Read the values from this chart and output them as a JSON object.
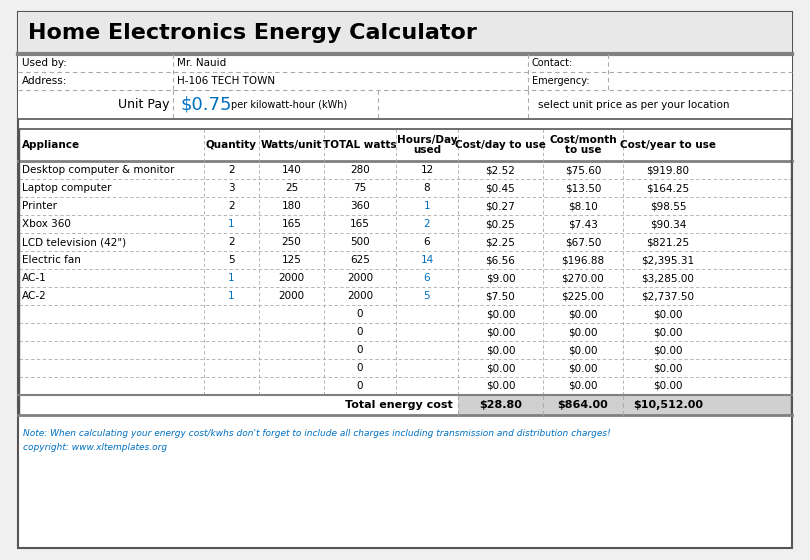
{
  "title": "Home Electronics Energy Calculator",
  "used_by_label": "Used by:",
  "used_by_value": "Mr. Nauid",
  "address_label": "Address:",
  "address_value": "H-106 TECH TOWN",
  "contact_label": "Contact:",
  "emergency_label": "Emergency:",
  "unit_pay_label": "Unit Pay",
  "unit_pay_value": "$0.75",
  "unit_pay_suffix": "per kilowatt-hour (kWh)",
  "unit_pay_note": "select unit price as per your location",
  "col_headers": [
    "Appliance",
    "Quantity",
    "Watts/unit",
    "TOTAL watts",
    "Hours/Day\nused",
    "Cost/day to use",
    "Cost/month\nto use",
    "Cost/year to use"
  ],
  "rows": [
    [
      "Desktop computer & monitor",
      "2",
      "140",
      "280",
      "12",
      "$2.52",
      "$75.60",
      "$919.80"
    ],
    [
      "Laptop computer",
      "3",
      "25",
      "75",
      "8",
      "$0.45",
      "$13.50",
      "$164.25"
    ],
    [
      "Printer",
      "2",
      "180",
      "360",
      "1",
      "$0.27",
      "$8.10",
      "$98.55"
    ],
    [
      "Xbox 360",
      "1",
      "165",
      "165",
      "2",
      "$0.25",
      "$7.43",
      "$90.34"
    ],
    [
      "LCD television (42\")",
      "2",
      "250",
      "500",
      "6",
      "$2.25",
      "$67.50",
      "$821.25"
    ],
    [
      "Electric fan",
      "5",
      "125",
      "625",
      "14",
      "$6.56",
      "$196.88",
      "$2,395.31"
    ],
    [
      "AC-1",
      "1",
      "2000",
      "2000",
      "6",
      "$9.00",
      "$270.00",
      "$3,285.00"
    ],
    [
      "AC-2",
      "1",
      "2000",
      "2000",
      "5",
      "$7.50",
      "$225.00",
      "$2,737.50"
    ],
    [
      "",
      "",
      "",
      "0",
      "",
      "$0.00",
      "$0.00",
      "$0.00"
    ],
    [
      "",
      "",
      "",
      "0",
      "",
      "$0.00",
      "$0.00",
      "$0.00"
    ],
    [
      "",
      "",
      "",
      "0",
      "",
      "$0.00",
      "$0.00",
      "$0.00"
    ],
    [
      "",
      "",
      "",
      "0",
      "",
      "$0.00",
      "$0.00",
      "$0.00"
    ],
    [
      "",
      "",
      "",
      "0",
      "",
      "$0.00",
      "$0.00",
      "$0.00"
    ]
  ],
  "total_label": "Total energy cost",
  "total_day": "$28.80",
  "total_month": "$864.00",
  "total_year": "$10,512.00",
  "note": "Note: When calculating your energy cost/kwhs don't forget to include all charges including transmission and distribution charges!",
  "copyright": "copyright: www.xltemplates.org",
  "bg_color": "#f0f0f0",
  "white": "#ffffff",
  "header_bg": "#808080",
  "title_bg": "#e8e8e8",
  "info_bg": "#ffffff",
  "total_bg": "#d0d0d0",
  "highlight_color": "#0070c0",
  "border_color": "#555555",
  "dashed_color": "#aaaaaa",
  "text_color": "#000000",
  "blue_text": "#0070c0"
}
